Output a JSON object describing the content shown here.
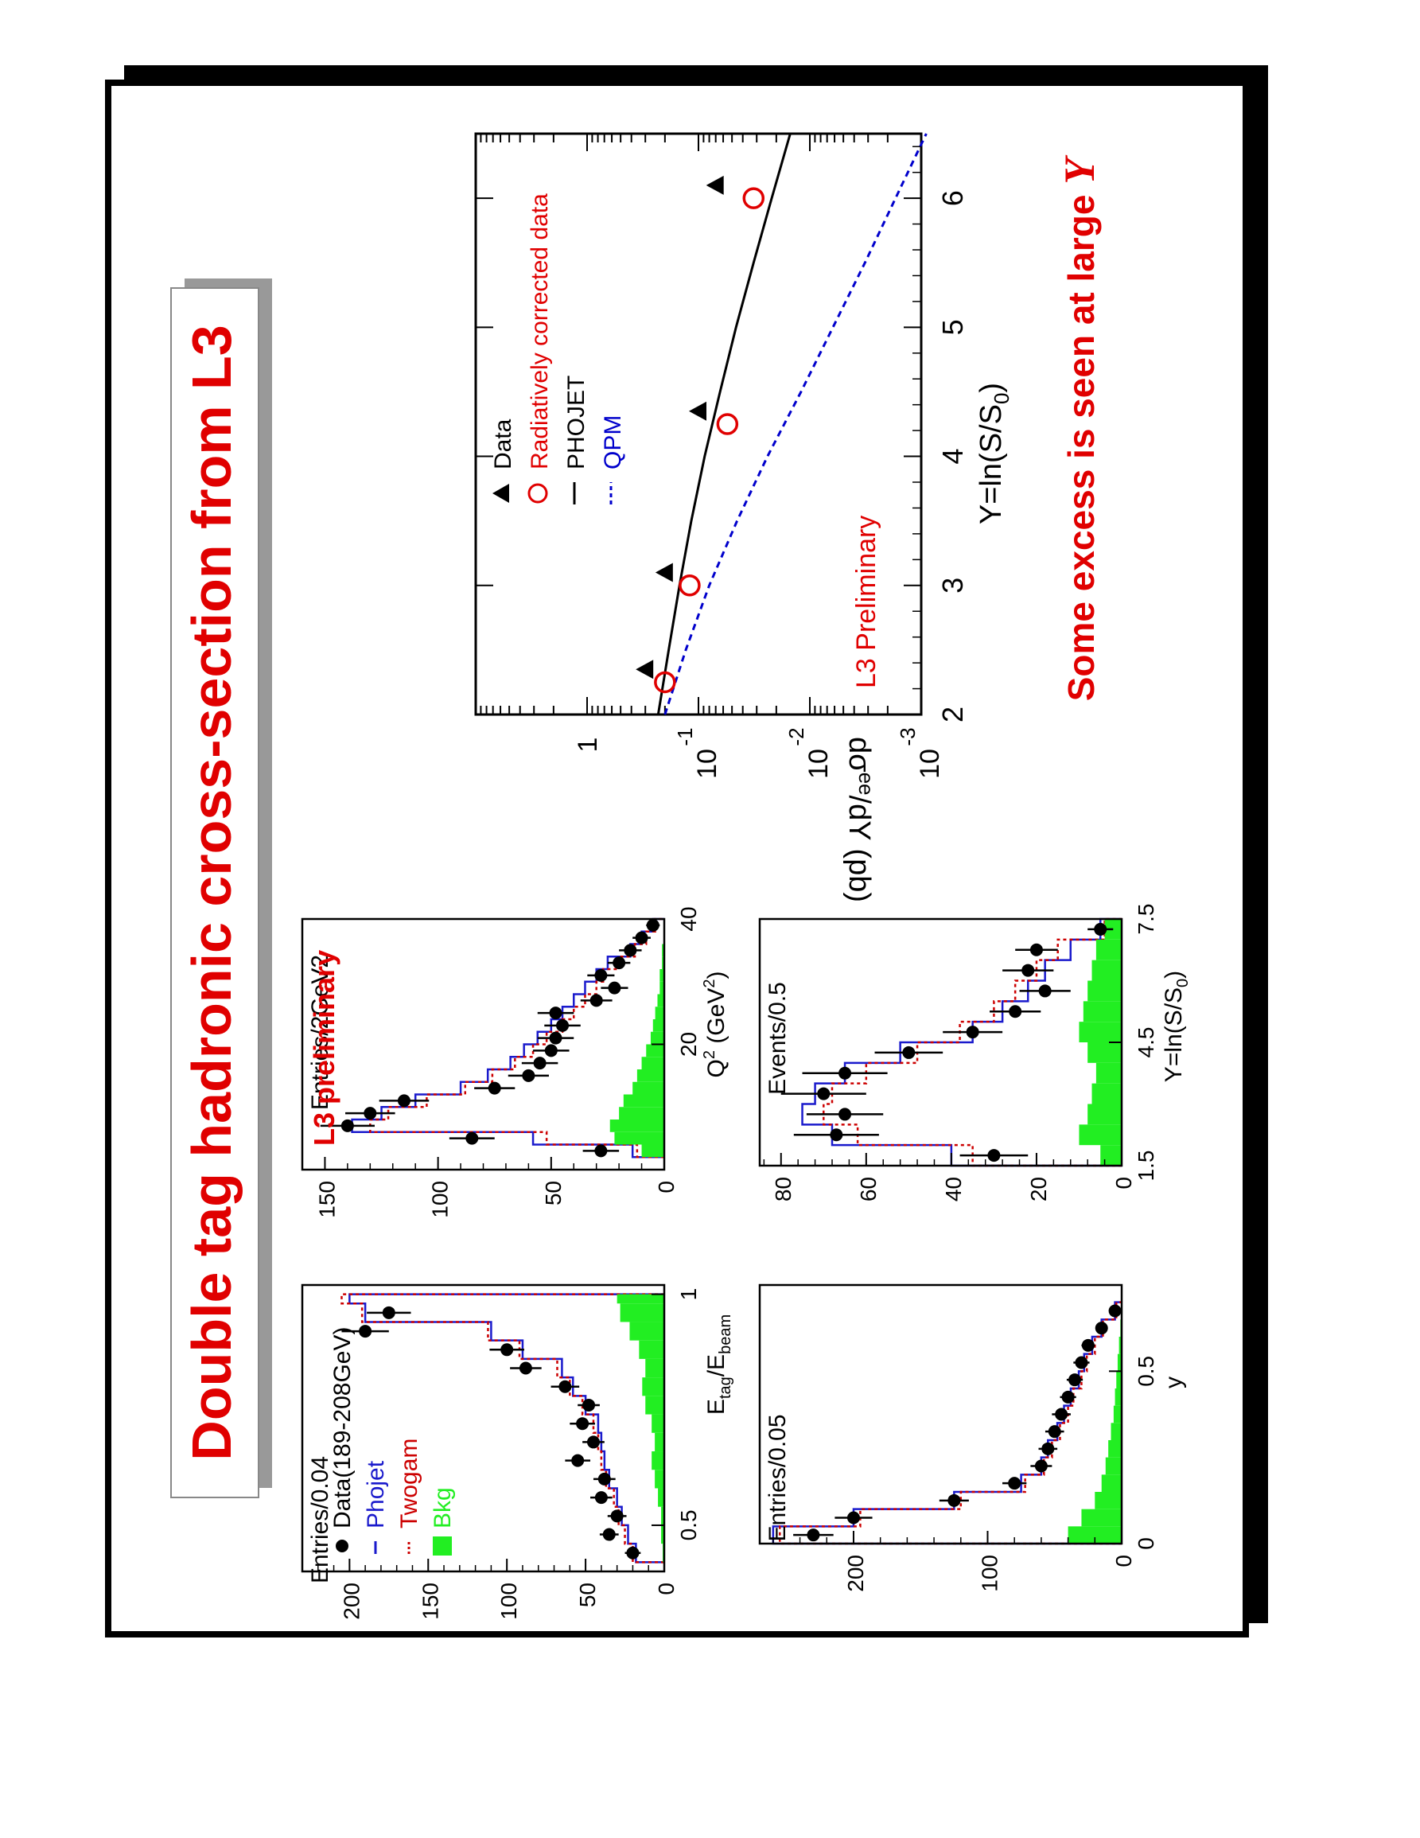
{
  "slide_title": "Double tag hadronic cross-section from L3",
  "conclusion": {
    "prefix": "Some excess is seen at large ",
    "symbol": "Y"
  },
  "colors": {
    "title_red": "#e00000",
    "qpm_blue": "#0000cc",
    "phojet_blue": "#1a1acc",
    "twogam_red": "#cc0000",
    "bkg_green": "#22ee22",
    "title_box_shadow": "#999999"
  },
  "chart_data": [
    {
      "id": "etag",
      "type": "histogram",
      "xlabel": "E_tag/E_beam",
      "ylabel": "Entries/0.04",
      "xlim": [
        0.4,
        1.02
      ],
      "ylim": [
        0,
        230
      ],
      "xticks": [
        0.5,
        1
      ],
      "xtick_labels": [
        "0.5",
        "1"
      ],
      "yticks": [
        0,
        50,
        100,
        150,
        200
      ],
      "legend": {
        "position": "top-left",
        "entries": [
          {
            "marker": "dot",
            "label": "Data(189-208GeV)"
          },
          {
            "marker": "line",
            "label": "Phojet",
            "color": "#1a1acc"
          },
          {
            "marker": "dotted",
            "label": "Twogam",
            "color": "#cc0000"
          },
          {
            "marker": "box",
            "label": "Bkg",
            "color": "#22ee22"
          }
        ]
      },
      "bin_edges": [
        0.42,
        0.46,
        0.5,
        0.54,
        0.58,
        0.62,
        0.66,
        0.7,
        0.74,
        0.78,
        0.82,
        0.86,
        0.9,
        0.94,
        0.98,
        1.0
      ],
      "series": [
        {
          "name": "Phojet",
          "style": "hist",
          "values": [
            18,
            23,
            27,
            30,
            35,
            38,
            40,
            42,
            50,
            58,
            65,
            90,
            110,
            190,
            200
          ]
        },
        {
          "name": "Twogam",
          "style": "hist-dotted",
          "values": [
            20,
            25,
            29,
            32,
            37,
            40,
            42,
            45,
            52,
            60,
            68,
            92,
            112,
            192,
            205
          ]
        },
        {
          "name": "Bkg",
          "style": "fill",
          "values": [
            1,
            2,
            2,
            4,
            6,
            8,
            6,
            8,
            12,
            14,
            12,
            16,
            22,
            28,
            30
          ]
        }
      ],
      "data": {
        "x": [
          0.44,
          0.48,
          0.52,
          0.56,
          0.6,
          0.64,
          0.68,
          0.72,
          0.76,
          0.8,
          0.84,
          0.88,
          0.92,
          0.96
        ],
        "y": [
          20,
          35,
          30,
          40,
          38,
          55,
          45,
          52,
          48,
          63,
          88,
          100,
          190,
          175
        ],
        "err": [
          5,
          6,
          6,
          7,
          7,
          8,
          7,
          8,
          7,
          9,
          10,
          11,
          15,
          14
        ]
      }
    },
    {
      "id": "q2",
      "type": "histogram",
      "xlabel": "Q2 (GeV2)",
      "ylabel": "Entries/2GeV2",
      "xlim": [
        0,
        40
      ],
      "ylim": [
        0,
        160
      ],
      "xticks": [
        20,
        40
      ],
      "yticks": [
        0,
        50,
        100,
        150
      ],
      "annotation": "L3 preliminary",
      "bin_edges": [
        2,
        4,
        6,
        8,
        10,
        12,
        14,
        16,
        18,
        20,
        22,
        24,
        26,
        28,
        30,
        32,
        34,
        36,
        38,
        40
      ],
      "series": [
        {
          "name": "Phojet",
          "style": "hist",
          "values": [
            14,
            58,
            138,
            125,
            110,
            90,
            78,
            68,
            62,
            56,
            50,
            45,
            40,
            35,
            30,
            25,
            15,
            10,
            5
          ]
        },
        {
          "name": "Twogam",
          "style": "hist-dotted",
          "values": [
            12,
            52,
            130,
            122,
            105,
            88,
            76,
            66,
            58,
            52,
            45,
            40,
            35,
            30,
            27,
            20,
            13,
            8,
            4
          ]
        },
        {
          "name": "Bkg",
          "style": "fill",
          "values": [
            10,
            22,
            24,
            20,
            18,
            14,
            12,
            10,
            8,
            6,
            5,
            4,
            3,
            2,
            2,
            1,
            1,
            0,
            0
          ]
        }
      ],
      "data": {
        "x": [
          3,
          5,
          7,
          9,
          11,
          13,
          15,
          17,
          19,
          21,
          23,
          25,
          27,
          29,
          31,
          33,
          35,
          37,
          39
        ],
        "y": [
          28,
          85,
          140,
          130,
          115,
          75,
          60,
          55,
          50,
          48,
          45,
          48,
          30,
          22,
          28,
          20,
          15,
          10,
          5
        ],
        "err": [
          8,
          10,
          12,
          11,
          11,
          9,
          9,
          8,
          8,
          8,
          8,
          8,
          7,
          6,
          6,
          5,
          5,
          4,
          3
        ]
      }
    },
    {
      "id": "y",
      "type": "histogram",
      "xlabel": "y",
      "ylabel": "Entries/0.05",
      "xlim": [
        0,
        0.75
      ],
      "ylim": [
        0,
        270
      ],
      "xticks": [
        0,
        0.5
      ],
      "yticks": [
        0,
        100,
        200
      ],
      "bin_edges": [
        0,
        0.05,
        0.1,
        0.15,
        0.2,
        0.25,
        0.3,
        0.35,
        0.4,
        0.45,
        0.5,
        0.55,
        0.6,
        0.65,
        0.7
      ],
      "series": [
        {
          "name": "Phojet",
          "style": "hist",
          "values": [
            260,
            200,
            125,
            75,
            60,
            55,
            48,
            43,
            38,
            32,
            28,
            22,
            15,
            5
          ]
        },
        {
          "name": "Twogam",
          "style": "hist-dotted",
          "values": [
            255,
            195,
            120,
            72,
            58,
            52,
            46,
            40,
            36,
            30,
            26,
            20,
            14,
            4
          ]
        },
        {
          "name": "Bkg",
          "style": "fill",
          "values": [
            40,
            30,
            20,
            15,
            12,
            10,
            8,
            6,
            5,
            4,
            3,
            2,
            1,
            0
          ]
        }
      ],
      "data": {
        "x": [
          0.025,
          0.075,
          0.125,
          0.175,
          0.225,
          0.275,
          0.325,
          0.375,
          0.425,
          0.475,
          0.525,
          0.575,
          0.625,
          0.675
        ],
        "y": [
          230,
          200,
          125,
          80,
          60,
          55,
          50,
          45,
          40,
          35,
          30,
          25,
          15,
          5
        ],
        "err": [
          15,
          14,
          11,
          9,
          8,
          7,
          7,
          7,
          6,
          6,
          6,
          5,
          4,
          3
        ]
      }
    },
    {
      "id": "Y",
      "type": "histogram",
      "xlabel": "Y=ln(S/S0)",
      "ylabel": "Events/0.5",
      "xlim": [
        1.5,
        7.5
      ],
      "ylim": [
        0,
        85
      ],
      "xticks": [
        1.5,
        4.5,
        7.5
      ],
      "xtick_labels": [
        "1.5",
        "4.5",
        "7.5"
      ],
      "yticks": [
        0,
        20,
        40,
        60,
        80
      ],
      "bin_edges": [
        1.5,
        2,
        2.5,
        3,
        3.5,
        4,
        4.5,
        5,
        5.5,
        6,
        6.5,
        7,
        7.5
      ],
      "series": [
        {
          "name": "Phojet",
          "style": "hist",
          "values": [
            40,
            68,
            75,
            72,
            65,
            52,
            35,
            28,
            22,
            18,
            12,
            5
          ]
        },
        {
          "name": "Twogam",
          "style": "hist-dotted",
          "values": [
            35,
            62,
            70,
            68,
            60,
            48,
            38,
            30,
            25,
            20,
            15,
            4
          ]
        },
        {
          "name": "Bkg",
          "style": "fill",
          "values": [
            5,
            10,
            8,
            7,
            6,
            8,
            10,
            9,
            8,
            7,
            6,
            4
          ]
        }
      ],
      "data": {
        "x": [
          1.75,
          2.25,
          2.75,
          3.25,
          3.75,
          4.25,
          4.75,
          5.25,
          5.75,
          6.25,
          6.75,
          7.25
        ],
        "y": [
          30,
          67,
          65,
          70,
          65,
          50,
          35,
          25,
          18,
          22,
          20,
          5
        ],
        "err": [
          8,
          10,
          9,
          10,
          10,
          8,
          7,
          6,
          6,
          6,
          5,
          3
        ]
      }
    },
    {
      "id": "xsec",
      "type": "scatter",
      "xlabel": "Y=ln(S/S0)",
      "ylabel": "dσee/dY (pb)",
      "xlim": [
        2,
        6.5
      ],
      "ylim_log10": [
        -3,
        1
      ],
      "log_y": true,
      "xticks": [
        2,
        3,
        4,
        5,
        6
      ],
      "yticks_log10": [
        -3,
        -2,
        -1,
        0
      ],
      "ytick_labels": [
        {
          "base": "10",
          "exp": "-3"
        },
        {
          "base": "10",
          "exp": "-2"
        },
        {
          "base": "10",
          "exp": "-1"
        },
        {
          "base": "1",
          "exp": ""
        }
      ],
      "annotation": "L3 Preliminary",
      "legend": {
        "position": "top-left",
        "entries": [
          {
            "marker": "triangle",
            "label": "Data",
            "color": "#000000"
          },
          {
            "marker": "open-circle",
            "label": "Radiatively corrected data",
            "color": "#e00000"
          },
          {
            "marker": "line",
            "label": "PHOJET",
            "color": "#000000"
          },
          {
            "marker": "dashed",
            "label": "QPM",
            "color": "#0000cc"
          }
        ]
      },
      "series": [
        {
          "name": "Data",
          "marker": "triangle",
          "x": [
            2.35,
            3.1,
            4.35,
            6.1
          ],
          "y": [
            0.3,
            0.2,
            0.1,
            0.07
          ]
        },
        {
          "name": "Radiatively corrected data",
          "marker": "open-circle",
          "x": [
            2.25,
            3.0,
            4.25,
            6.0
          ],
          "y": [
            0.2,
            0.12,
            0.055,
            0.032
          ]
        },
        {
          "name": "PHOJET",
          "style": "line",
          "x": [
            2.0,
            2.5,
            3.0,
            3.5,
            4.0,
            4.5,
            5.0,
            5.5,
            6.0,
            6.5
          ],
          "y": [
            0.23,
            0.185,
            0.148,
            0.116,
            0.088,
            0.064,
            0.046,
            0.032,
            0.022,
            0.015
          ]
        },
        {
          "name": "QPM",
          "style": "dashed",
          "x": [
            2.0,
            2.5,
            3.0,
            3.5,
            4.0,
            4.5,
            5.0,
            5.5,
            6.0,
            6.5
          ],
          "y": [
            0.2,
            0.13,
            0.08,
            0.045,
            0.024,
            0.012,
            0.0062,
            0.0032,
            0.0017,
            0.0009
          ]
        }
      ]
    }
  ]
}
